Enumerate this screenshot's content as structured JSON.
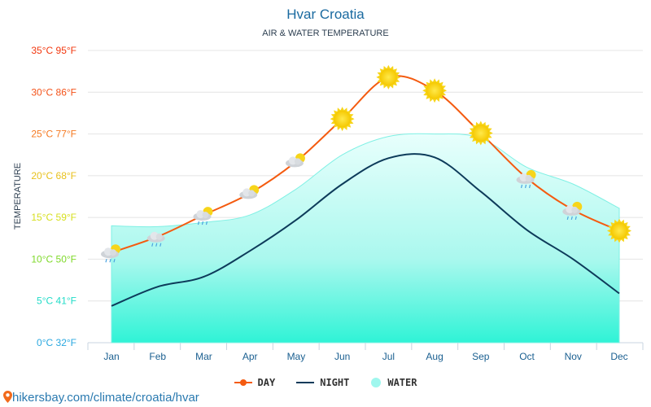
{
  "chart_data": {
    "type": "line",
    "title": "Hvar Croatia",
    "subtitle": "AIR & WATER TEMPERATURE",
    "ylabel": "TEMPERATURE",
    "ylim": [
      0,
      35
    ],
    "yticks": [
      {
        "value": 35,
        "label": "35°C 95°F",
        "color": "#f2380f"
      },
      {
        "value": 30,
        "label": "30°C 86°F",
        "color": "#f4531a"
      },
      {
        "value": 25,
        "label": "25°C 77°F",
        "color": "#f57a22"
      },
      {
        "value": 20,
        "label": "20°C 68°F",
        "color": "#e8c11c"
      },
      {
        "value": 15,
        "label": "15°C 59°F",
        "color": "#d6df1e"
      },
      {
        "value": 10,
        "label": "10°C 50°F",
        "color": "#7fd92a"
      },
      {
        "value": 5,
        "label": "5°C 41°F",
        "color": "#22dcc8"
      },
      {
        "value": 0,
        "label": "0°C 32°F",
        "color": "#2aa8e0"
      }
    ],
    "grid": true,
    "legend_position": "bottom",
    "categories": [
      "Jan",
      "Feb",
      "Mar",
      "Apr",
      "May",
      "Jun",
      "Jul",
      "Aug",
      "Sep",
      "Oct",
      "Nov",
      "Dec"
    ],
    "series": [
      {
        "name": "DAY",
        "color": "#f45b10",
        "values": [
          10.8,
          12.7,
          15.3,
          17.9,
          21.7,
          26.8,
          31.8,
          30.2,
          25.1,
          19.7,
          15.9,
          13.4
        ]
      },
      {
        "name": "NIGHT",
        "color": "#0d3b5a",
        "values": [
          4.4,
          6.7,
          7.9,
          11.0,
          14.7,
          19.0,
          22.1,
          22.2,
          18.1,
          13.5,
          10.0,
          5.9
        ]
      },
      {
        "name": "WATER",
        "color": "#9ff7ee",
        "values": [
          14.0,
          13.9,
          14.4,
          15.3,
          18.4,
          22.5,
          24.7,
          25.0,
          24.5,
          21.0,
          19.0,
          16.1
        ]
      }
    ],
    "weather_icons": [
      "cloud-rain-sun",
      "cloud-rain",
      "cloud-rain-sun",
      "cloud-sun",
      "cloud-sun",
      "sun",
      "sun",
      "sun",
      "sun",
      "cloud-rain-sun",
      "cloud-rain-sun",
      "sun"
    ]
  },
  "source": "hikersbay.com/climate/croatia/hvar"
}
